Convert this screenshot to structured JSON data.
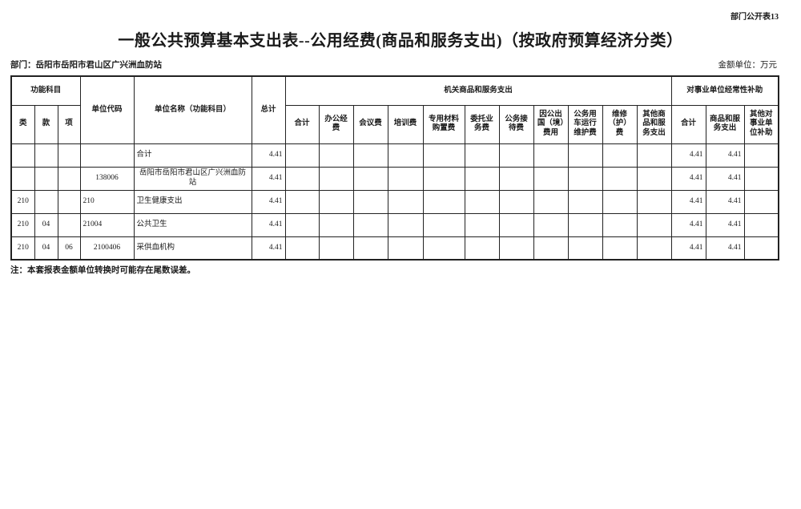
{
  "page": {
    "corner_label": "部门公开表13",
    "title": "一般公共预算基本支出表--公用经费(商品和服务支出)（按政府预算经济分类）",
    "department": "部门：岳阳市岳阳市君山区广兴洲血防站",
    "amount_unit": "金额单位：万元",
    "note": "注：本套报表金额单位转换时可能存在尾数误差。"
  },
  "table": {
    "headers": {
      "func_category_group": "功能科目",
      "func_class": "类",
      "func_section": "款",
      "func_item": "项",
      "unit_code": "单位代码",
      "unit_name": "单位名称（功能科目）",
      "grand_total": "总计",
      "org_goods_services_group": "机关商品和服务支出",
      "org_columns": [
        "合计",
        "办公经费",
        "会议费",
        "培训费",
        "专用材料购置费",
        "委托业务费",
        "公务接待费",
        "因公出国（境）费用",
        "公务用车运行维护费",
        "维修（护）费",
        "其他商品和服务支出"
      ],
      "subsidy_group": "对事业单位经常性补助",
      "subsidy_columns": [
        "合计",
        "商品和服务支出",
        "其他对事业单位补助"
      ]
    },
    "rows": [
      {
        "func_class": "",
        "func_section": "",
        "func_item": "",
        "unit_code": "",
        "unit_code_align": "center",
        "unit_name": "合计",
        "unit_name_style": "left",
        "grand_total": "4.41",
        "org_values": [
          "",
          "",
          "",
          "",
          "",
          "",
          "",
          "",
          "",
          "",
          ""
        ],
        "subsidy_values": [
          "4.41",
          "4.41",
          ""
        ]
      },
      {
        "func_class": "",
        "func_section": "",
        "func_item": "",
        "unit_code": "138006",
        "unit_code_align": "center",
        "unit_name": "岳阳市岳阳市君山区广兴洲血防站",
        "unit_name_style": "center",
        "grand_total": "4.41",
        "org_values": [
          "",
          "",
          "",
          "",
          "",
          "",
          "",
          "",
          "",
          "",
          ""
        ],
        "subsidy_values": [
          "4.41",
          "4.41",
          ""
        ]
      },
      {
        "func_class": "210",
        "func_section": "",
        "func_item": "",
        "unit_code": "210",
        "unit_code_align": "left",
        "unit_name": "卫生健康支出",
        "unit_name_style": "left",
        "grand_total": "4.41",
        "org_values": [
          "",
          "",
          "",
          "",
          "",
          "",
          "",
          "",
          "",
          "",
          ""
        ],
        "subsidy_values": [
          "4.41",
          "4.41",
          ""
        ]
      },
      {
        "func_class": "210",
        "func_section": "04",
        "func_item": "",
        "unit_code": "21004",
        "unit_code_align": "left",
        "unit_name": "公共卫生",
        "unit_name_style": "left",
        "grand_total": "4.41",
        "org_values": [
          "",
          "",
          "",
          "",
          "",
          "",
          "",
          "",
          "",
          "",
          ""
        ],
        "subsidy_values": [
          "4.41",
          "4.41",
          ""
        ]
      },
      {
        "func_class": "210",
        "func_section": "04",
        "func_item": "06",
        "unit_code": "2100406",
        "unit_code_align": "center",
        "unit_name": "采供血机构",
        "unit_name_style": "indent",
        "grand_total": "4.41",
        "org_values": [
          "",
          "",
          "",
          "",
          "",
          "",
          "",
          "",
          "",
          "",
          ""
        ],
        "subsidy_values": [
          "4.41",
          "4.41",
          ""
        ]
      }
    ]
  }
}
